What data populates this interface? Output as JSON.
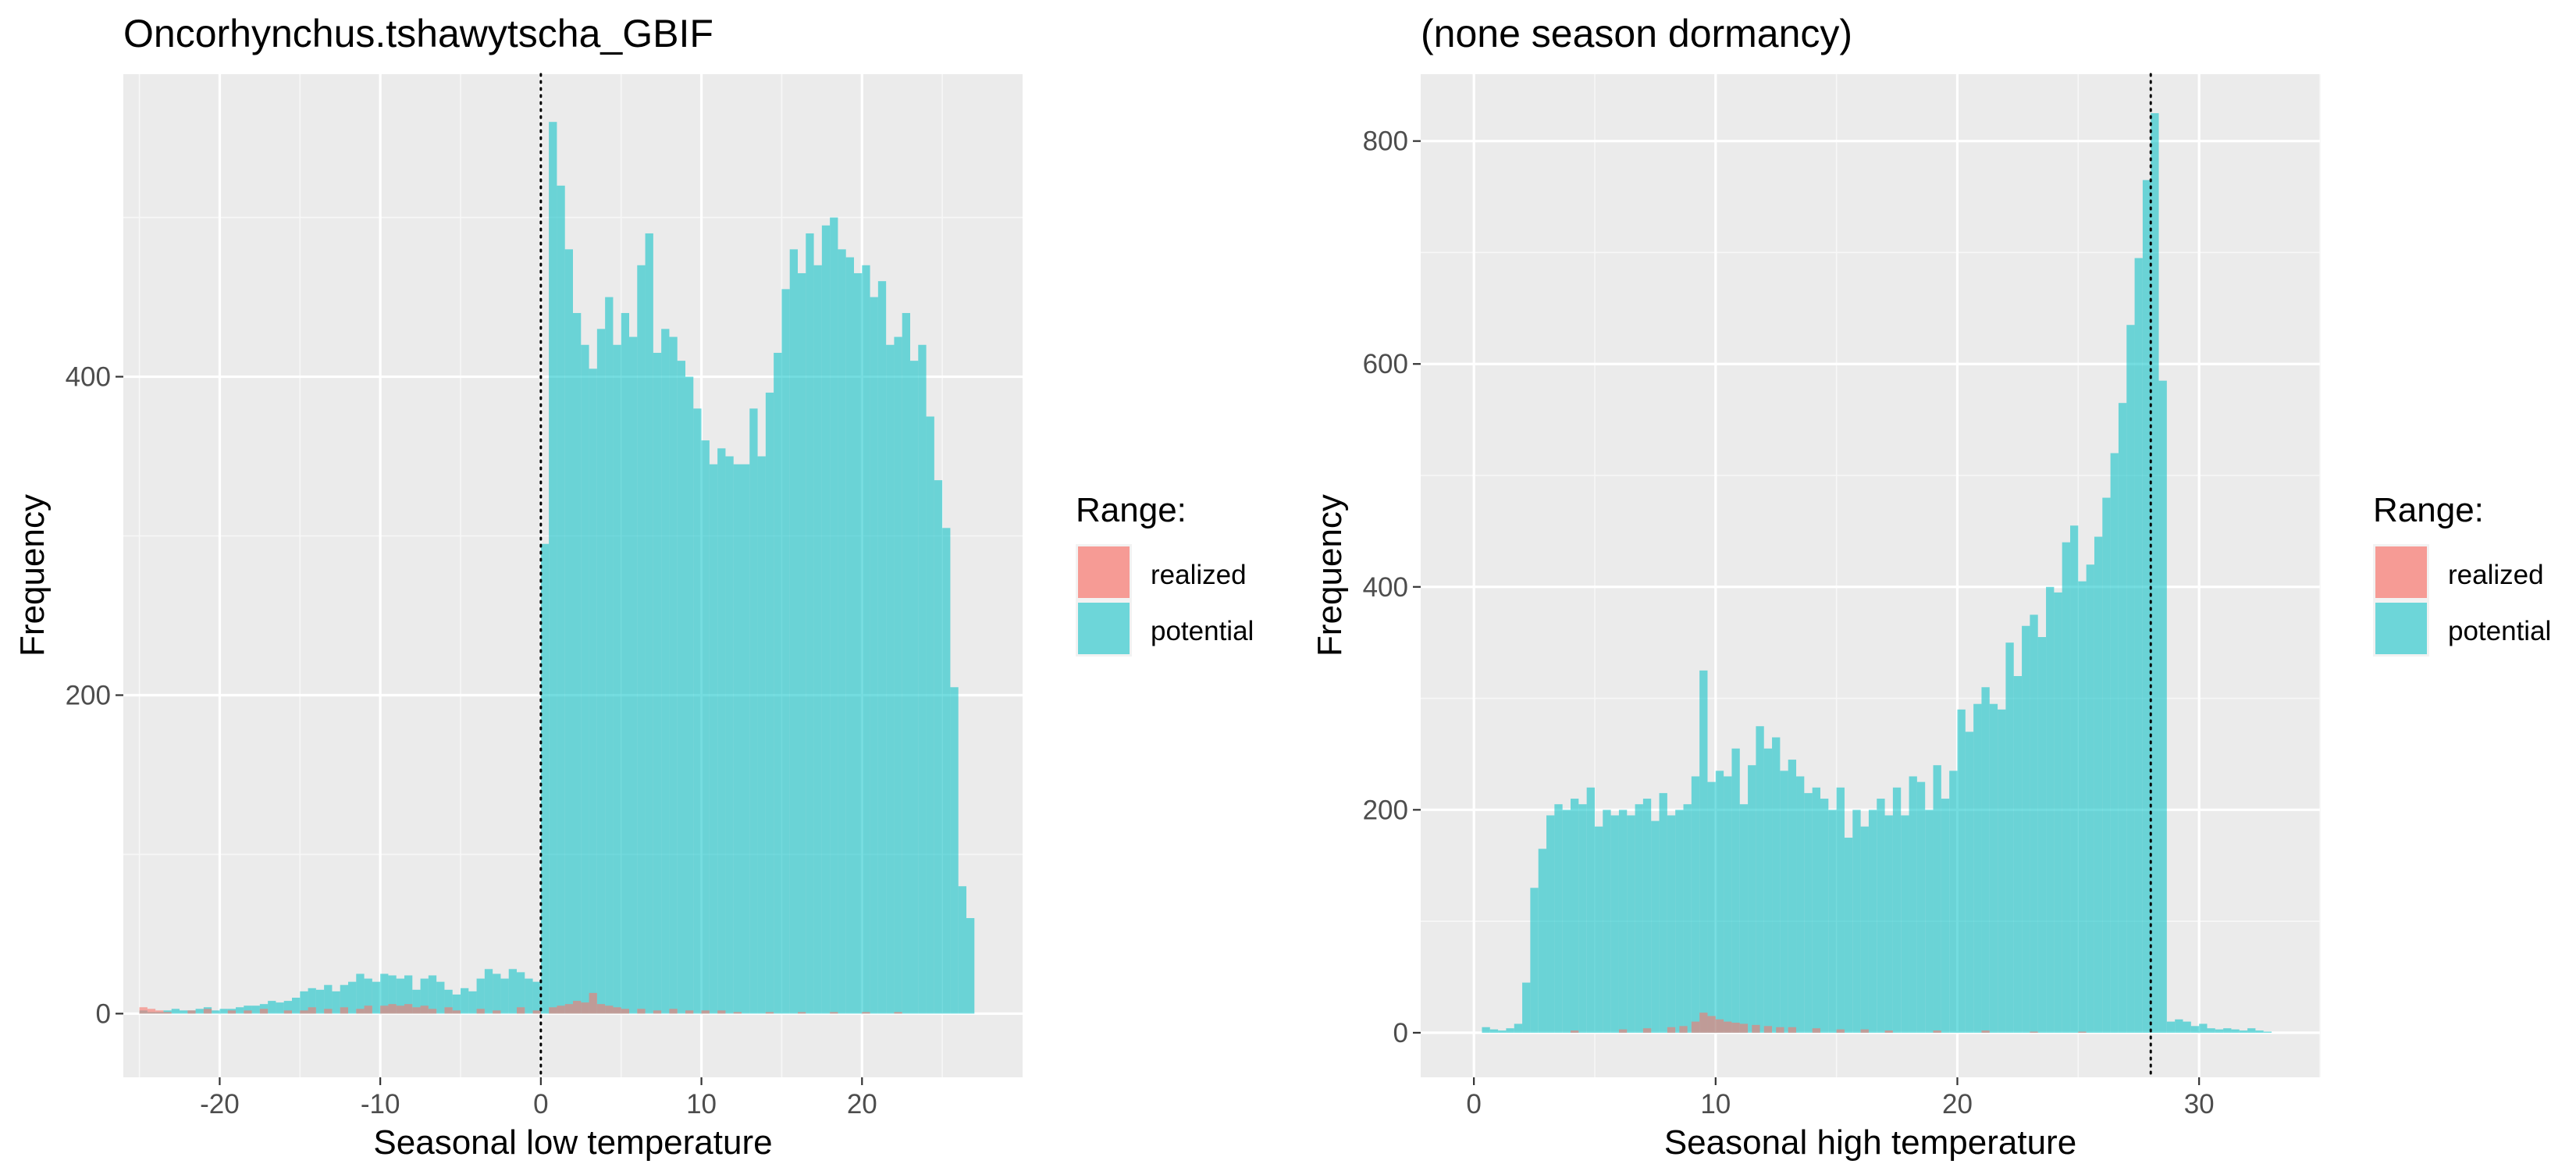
{
  "chart_data": [
    {
      "type": "histogram",
      "title": "Oncorhynchus.tshawytscha_GBIF",
      "xlabel": "Seasonal low temperature",
      "ylabel": "Frequency",
      "xlim": [
        -26,
        30
      ],
      "ylim": [
        -40,
        590
      ],
      "x_ticks": [
        -20,
        -10,
        0,
        10,
        20
      ],
      "x_tick_labels": [
        "-20",
        "-10",
        "0",
        "10",
        "20"
      ],
      "y_ticks": [
        0,
        200,
        400
      ],
      "y_tick_labels": [
        "0",
        "200",
        "400"
      ],
      "grid": true,
      "vline": {
        "x": 0,
        "style": "dotted"
      },
      "bin_width": 0.5,
      "legend": {
        "title": "Range:",
        "position": "right",
        "entries": [
          "realized",
          "potential"
        ]
      },
      "series": [
        {
          "name": "potential",
          "color": "#00BFC4",
          "bins_start": [
            -25.0,
            -24.5,
            -24.0,
            -23.5,
            -23.0,
            -22.5,
            -22.0,
            -21.5,
            -21.0,
            -20.5,
            -20.0,
            -19.5,
            -19.0,
            -18.5,
            -18.0,
            -17.5,
            -17.0,
            -16.5,
            -16.0,
            -15.5,
            -15.0,
            -14.5,
            -14.0,
            -13.5,
            -13.0,
            -12.5,
            -12.0,
            -11.5,
            -11.0,
            -10.5,
            -10.0,
            -9.5,
            -9.0,
            -8.5,
            -8.0,
            -7.5,
            -7.0,
            -6.5,
            -6.0,
            -5.5,
            -5.0,
            -4.5,
            -4.0,
            -3.5,
            -3.0,
            -2.5,
            -2.0,
            -1.5,
            -1.0,
            -0.5,
            0.0,
            0.5,
            1.0,
            1.5,
            2.0,
            2.5,
            3.0,
            3.5,
            4.0,
            4.5,
            5.0,
            5.5,
            6.0,
            6.5,
            7.0,
            7.5,
            8.0,
            8.5,
            9.0,
            9.5,
            10.0,
            10.5,
            11.0,
            11.5,
            12.0,
            12.5,
            13.0,
            13.5,
            14.0,
            14.5,
            15.0,
            15.5,
            16.0,
            16.5,
            17.0,
            17.5,
            18.0,
            18.5,
            19.0,
            19.5,
            20.0,
            20.5,
            21.0,
            21.5,
            22.0,
            22.5,
            23.0,
            23.5,
            24.0,
            24.5,
            25.0,
            25.5,
            26.0,
            26.5
          ],
          "values": [
            2,
            1,
            1,
            2,
            3,
            2,
            2,
            3,
            4,
            2,
            3,
            3,
            4,
            5,
            5,
            6,
            8,
            7,
            8,
            10,
            14,
            16,
            15,
            18,
            14,
            18,
            20,
            25,
            22,
            20,
            25,
            24,
            22,
            24,
            15,
            22,
            24,
            20,
            15,
            12,
            16,
            14,
            22,
            28,
            25,
            22,
            28,
            26,
            22,
            20,
            295,
            560,
            520,
            480,
            440,
            420,
            405,
            430,
            450,
            420,
            440,
            425,
            470,
            490,
            415,
            430,
            425,
            410,
            400,
            380,
            360,
            345,
            355,
            350,
            345,
            345,
            380,
            350,
            390,
            415,
            455,
            480,
            465,
            490,
            470,
            495,
            500,
            480,
            475,
            465,
            470,
            450,
            460,
            420,
            425,
            440,
            410,
            420,
            375,
            335,
            305,
            205,
            80,
            60
          ]
        },
        {
          "name": "realized",
          "color": "#F8766D",
          "bins_start": [
            -25.0,
            -24.5,
            -24.0,
            -23.5,
            -22.0,
            -21.0,
            -19.5,
            -18.5,
            -17.5,
            -16.0,
            -15.0,
            -14.5,
            -13.5,
            -12.5,
            -11.5,
            -11.0,
            -10.0,
            -9.5,
            -9.0,
            -8.5,
            -8.0,
            -7.5,
            -7.0,
            -6.0,
            -5.5,
            -4.0,
            -3.0,
            -1.5,
            -0.5,
            0.5,
            1.0,
            1.5,
            2.0,
            2.5,
            3.0,
            3.5,
            4.0,
            4.5,
            5.0,
            6.0,
            7.0,
            8.0,
            9.0,
            10.0,
            11.0,
            12.0,
            14.0,
            16.0,
            18.0,
            20.0,
            22.0
          ],
          "values": [
            4,
            3,
            2,
            1,
            2,
            3,
            2,
            2,
            3,
            2,
            2,
            4,
            3,
            4,
            3,
            5,
            5,
            6,
            5,
            6,
            4,
            5,
            3,
            4,
            2,
            3,
            2,
            4,
            2,
            4,
            5,
            6,
            8,
            7,
            13,
            6,
            5,
            4,
            3,
            3,
            2,
            3,
            2,
            2,
            2,
            1,
            1,
            1,
            1,
            1,
            1
          ]
        }
      ]
    },
    {
      "type": "histogram",
      "title": "(none season dormancy)",
      "xlabel": "Seasonal high temperature",
      "ylabel": "Frequency",
      "xlim": [
        -2.2,
        35
      ],
      "ylim": [
        -40,
        860
      ],
      "x_ticks": [
        0,
        10,
        20,
        30
      ],
      "x_tick_labels": [
        "0",
        "10",
        "20",
        "30"
      ],
      "y_ticks": [
        0,
        200,
        400,
        600,
        800
      ],
      "y_tick_labels": [
        "0",
        "200",
        "400",
        "600",
        "800"
      ],
      "grid": true,
      "vline": {
        "x": 28,
        "style": "dotted"
      },
      "bin_width": 0.333,
      "legend": {
        "title": "Range:",
        "position": "right",
        "entries": [
          "realized",
          "potential"
        ]
      },
      "series": [
        {
          "name": "potential",
          "color": "#00BFC4",
          "bins_start": [
            0.333,
            0.667,
            1.0,
            1.333,
            1.667,
            2.0,
            2.333,
            2.667,
            3.0,
            3.333,
            3.667,
            4.0,
            4.333,
            4.667,
            5.0,
            5.333,
            5.667,
            6.0,
            6.333,
            6.667,
            7.0,
            7.333,
            7.667,
            8.0,
            8.333,
            8.667,
            9.0,
            9.333,
            9.667,
            10.0,
            10.333,
            10.667,
            11.0,
            11.333,
            11.667,
            12.0,
            12.333,
            12.667,
            13.0,
            13.333,
            13.667,
            14.0,
            14.333,
            14.667,
            15.0,
            15.333,
            15.667,
            16.0,
            16.333,
            16.667,
            17.0,
            17.333,
            17.667,
            18.0,
            18.333,
            18.667,
            19.0,
            19.333,
            19.667,
            20.0,
            20.333,
            20.667,
            21.0,
            21.333,
            21.667,
            22.0,
            22.333,
            22.667,
            23.0,
            23.333,
            23.667,
            24.0,
            24.333,
            24.667,
            25.0,
            25.333,
            25.667,
            26.0,
            26.333,
            26.667,
            27.0,
            27.333,
            27.667,
            28.0,
            28.333,
            28.667,
            29.0,
            29.333,
            29.667,
            30.0,
            30.333,
            30.667,
            31.0,
            31.333,
            31.667,
            32.0,
            32.333,
            32.667
          ],
          "values": [
            5,
            3,
            2,
            4,
            8,
            45,
            130,
            165,
            195,
            205,
            200,
            210,
            205,
            220,
            185,
            200,
            195,
            200,
            195,
            205,
            210,
            190,
            215,
            195,
            200,
            205,
            230,
            325,
            225,
            235,
            230,
            255,
            205,
            240,
            275,
            255,
            265,
            235,
            245,
            230,
            215,
            220,
            210,
            200,
            220,
            175,
            200,
            185,
            200,
            210,
            195,
            220,
            195,
            230,
            225,
            200,
            240,
            210,
            235,
            290,
            270,
            295,
            310,
            295,
            290,
            350,
            320,
            365,
            375,
            355,
            400,
            395,
            440,
            455,
            405,
            420,
            445,
            480,
            520,
            565,
            635,
            695,
            765,
            825,
            585,
            10,
            12,
            10,
            6,
            8,
            4,
            3,
            4,
            3,
            2,
            4,
            2,
            1
          ]
        },
        {
          "name": "realized",
          "color": "#F8766D",
          "bins_start": [
            4.0,
            6.0,
            7.0,
            8.0,
            8.5,
            9.0,
            9.333,
            9.667,
            10.0,
            10.333,
            10.667,
            11.0,
            11.5,
            12.0,
            12.5,
            13.0,
            14.0,
            15.0,
            16.0,
            17.0,
            19.0,
            21.0,
            23.0,
            25.0
          ],
          "values": [
            2,
            3,
            4,
            5,
            6,
            10,
            18,
            15,
            12,
            10,
            9,
            8,
            7,
            6,
            5,
            5,
            4,
            3,
            3,
            2,
            2,
            2,
            1,
            1
          ]
        }
      ]
    }
  ]
}
